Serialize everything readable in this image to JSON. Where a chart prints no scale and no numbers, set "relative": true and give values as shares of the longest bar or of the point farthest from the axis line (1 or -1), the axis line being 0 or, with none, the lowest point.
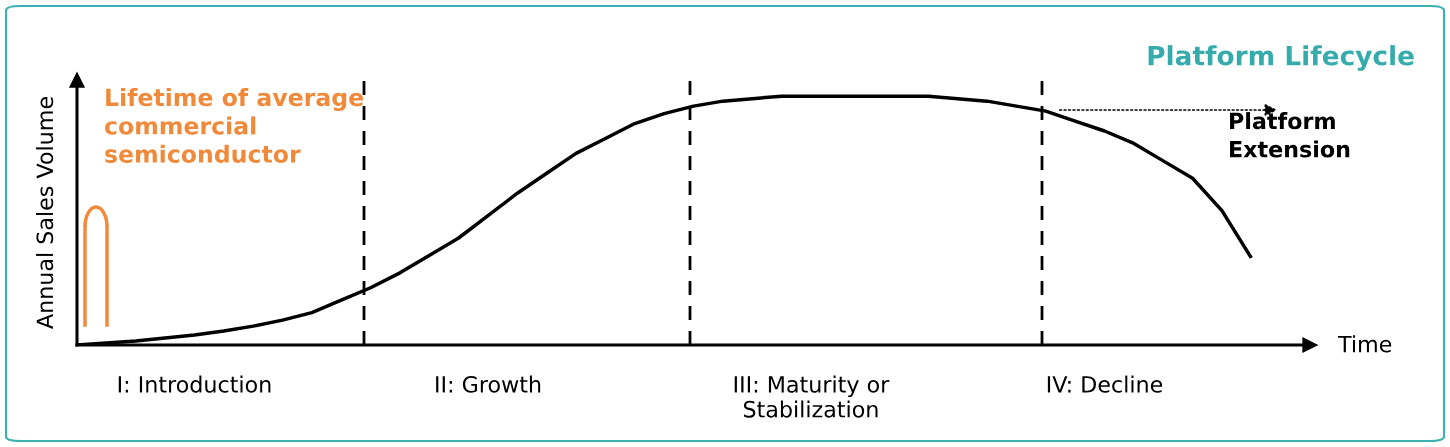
{
  "chart_data": {
    "type": "line",
    "title": "Platform Lifecycle",
    "xlabel": "Time",
    "ylabel": "Annual Sales Volume",
    "relative": true,
    "categories": [
      null,
      null,
      null,
      null,
      "I: Introduction",
      null,
      null,
      null,
      null,
      null,
      null,
      null,
      null,
      null,
      "II: Growth",
      null,
      null,
      null,
      null,
      null,
      null,
      null,
      null,
      null,
      null,
      "III: Maturity or\nStabilization",
      null,
      null,
      null,
      null,
      null,
      null,
      null,
      null,
      null,
      "IV: Decline",
      null,
      null,
      null,
      null,
      null,
      null,
      null
    ],
    "series": [
      {
        "color": "#000000",
        "values": [
          0,
          0.008,
          0.016,
          0.028,
          0.04,
          0.056,
          0.076,
          0.1,
          0.13,
          0.18,
          0.23,
          0.29,
          0.36,
          0.43,
          0.52,
          0.61,
          0.69,
          0.77,
          0.83,
          0.89,
          0.93,
          0.96,
          0.98,
          0.99,
          1.0,
          1.0,
          1.0,
          1.0,
          1.0,
          1.0,
          0.99,
          0.98,
          0.96,
          0.94,
          0.9,
          0.86,
          0.81,
          0.74,
          0.67,
          0.54,
          0.35,
          null,
          null
        ]
      }
    ],
    "annotations": [
      "Lifetime of average commercial semiconductor",
      "Platform Extension"
    ],
    "legend": false,
    "marker": "none",
    "line_style": "solid"
  }
}
